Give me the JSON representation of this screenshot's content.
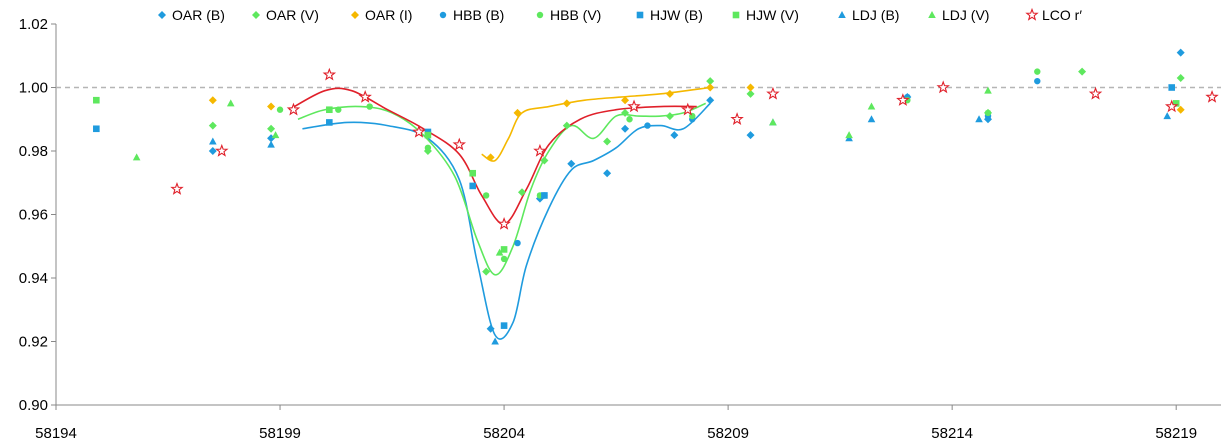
{
  "chart_data": {
    "type": "scatter",
    "title": "",
    "xlabel": "",
    "ylabel": "",
    "xlim": [
      58194,
      58220
    ],
    "ylim": [
      0.9,
      1.02
    ],
    "x_ticks": [
      58194,
      58199,
      58204,
      58209,
      58214,
      58219
    ],
    "y_ticks": [
      0.9,
      0.92,
      0.94,
      0.96,
      0.98,
      1.0,
      1.02
    ],
    "x_tick_labels": [
      "58194",
      "58199",
      "58204",
      "58209",
      "58214",
      "58219"
    ],
    "y_tick_labels": [
      "0.90",
      "0.92",
      "0.94",
      "0.96",
      "0.98",
      "1.00",
      "1.02"
    ],
    "reference_line": 1.0,
    "grid": false,
    "legend_position": "top",
    "series": [
      {
        "name": "OAR (B)",
        "color": "#1F9BDE",
        "marker": "diamond",
        "points": [
          [
            58197.5,
            0.98
          ],
          [
            58198.8,
            0.984
          ],
          [
            58203.7,
            0.924
          ],
          [
            58204.8,
            0.965
          ],
          [
            58205.5,
            0.976
          ],
          [
            58206.3,
            0.973
          ],
          [
            58206.7,
            0.987
          ],
          [
            58207.8,
            0.985
          ],
          [
            58208.6,
            0.996
          ],
          [
            58209.5,
            0.985
          ],
          [
            58213.0,
            0.997
          ],
          [
            58214.8,
            0.99
          ],
          [
            58219.1,
            1.011
          ]
        ]
      },
      {
        "name": "OAR (V)",
        "color": "#5EE85E",
        "marker": "diamond",
        "points": [
          [
            58197.5,
            0.988
          ],
          [
            58198.8,
            0.987
          ],
          [
            58202.3,
            0.98
          ],
          [
            58203.6,
            0.942
          ],
          [
            58204.4,
            0.967
          ],
          [
            58204.9,
            0.977
          ],
          [
            58205.4,
            0.988
          ],
          [
            58206.3,
            0.983
          ],
          [
            58206.7,
            0.992
          ],
          [
            58207.7,
            0.991
          ],
          [
            58208.6,
            1.002
          ],
          [
            58209.5,
            0.998
          ],
          [
            58214.8,
            0.992
          ],
          [
            58216.9,
            1.005
          ],
          [
            58219.1,
            1.003
          ]
        ]
      },
      {
        "name": "OAR (I)",
        "color": "#F5B800",
        "marker": "diamond",
        "points": [
          [
            58197.5,
            0.996
          ],
          [
            58198.8,
            0.994
          ],
          [
            58203.7,
            0.978
          ],
          [
            58204.3,
            0.992
          ],
          [
            58205.4,
            0.995
          ],
          [
            58206.7,
            0.996
          ],
          [
            58207.7,
            0.998
          ],
          [
            58208.6,
            1.0
          ],
          [
            58209.5,
            1.0
          ],
          [
            58219.1,
            0.993
          ]
        ]
      },
      {
        "name": "HBB (B)",
        "color": "#1F9BDE",
        "marker": "circle",
        "points": [
          [
            58204.3,
            0.951
          ],
          [
            58204.9,
            0.966
          ],
          [
            58207.2,
            0.988
          ],
          [
            58208.2,
            0.99
          ],
          [
            58213.0,
            0.997
          ],
          [
            58214.8,
            0.991
          ],
          [
            58215.9,
            1.002
          ]
        ]
      },
      {
        "name": "HBB (V)",
        "color": "#5EE85E",
        "marker": "circle",
        "points": [
          [
            58199.0,
            0.993
          ],
          [
            58200.3,
            0.993
          ],
          [
            58201.0,
            0.994
          ],
          [
            58202.3,
            0.981
          ],
          [
            58203.6,
            0.966
          ],
          [
            58204.0,
            0.946
          ],
          [
            58204.8,
            0.966
          ],
          [
            58206.8,
            0.99
          ],
          [
            58208.2,
            0.991
          ],
          [
            58213.0,
            0.996
          ],
          [
            58214.8,
            0.992
          ],
          [
            58215.9,
            1.005
          ]
        ]
      },
      {
        "name": "HJW (B)",
        "color": "#1F9BDE",
        "marker": "square",
        "points": [
          [
            58194.9,
            0.987
          ],
          [
            58200.1,
            0.989
          ],
          [
            58202.3,
            0.986
          ],
          [
            58203.3,
            0.969
          ],
          [
            58204.0,
            0.925
          ],
          [
            58204.9,
            0.966
          ],
          [
            58218.9,
            1.0
          ]
        ]
      },
      {
        "name": "HJW (V)",
        "color": "#5EE85E",
        "marker": "square",
        "points": [
          [
            58194.9,
            0.996
          ],
          [
            58200.1,
            0.993
          ],
          [
            58202.3,
            0.985
          ],
          [
            58203.3,
            0.973
          ],
          [
            58204.0,
            0.949
          ],
          [
            58219.0,
            0.995
          ]
        ]
      },
      {
        "name": "LDJ (B)",
        "color": "#1F9BDE",
        "marker": "triangle",
        "points": [
          [
            58197.5,
            0.983
          ],
          [
            58198.8,
            0.982
          ],
          [
            58203.8,
            0.92
          ],
          [
            58210.0,
            0.989
          ],
          [
            58211.7,
            0.984
          ],
          [
            58212.2,
            0.99
          ],
          [
            58214.6,
            0.99
          ],
          [
            58218.8,
            0.991
          ]
        ]
      },
      {
        "name": "LDJ (V)",
        "color": "#5EE85E",
        "marker": "triangle",
        "points": [
          [
            58195.8,
            0.978
          ],
          [
            58197.9,
            0.995
          ],
          [
            58198.9,
            0.985
          ],
          [
            58203.9,
            0.948
          ],
          [
            58210.0,
            0.989
          ],
          [
            58211.7,
            0.985
          ],
          [
            58212.2,
            0.994
          ],
          [
            58214.8,
            0.999
          ]
        ]
      },
      {
        "name": "LCO r′",
        "color": "#E0202A",
        "marker": "star",
        "points": [
          [
            58196.7,
            0.968
          ],
          [
            58197.7,
            0.98
          ],
          [
            58199.3,
            0.993
          ],
          [
            58200.1,
            1.004
          ],
          [
            58200.9,
            0.997
          ],
          [
            58202.1,
            0.986
          ],
          [
            58203.0,
            0.982
          ],
          [
            58204.0,
            0.957
          ],
          [
            58204.8,
            0.98
          ],
          [
            58206.9,
            0.994
          ],
          [
            58208.1,
            0.993
          ],
          [
            58209.2,
            0.99
          ],
          [
            58210.0,
            0.998
          ],
          [
            58212.9,
            0.996
          ],
          [
            58213.8,
            1.0
          ],
          [
            58217.2,
            0.998
          ],
          [
            58218.9,
            0.994
          ],
          [
            58219.8,
            0.997
          ]
        ]
      }
    ],
    "fit_lines": [
      {
        "color": "#1F9BDE",
        "points": [
          [
            58199.5,
            0.987
          ],
          [
            58200.5,
            0.989
          ],
          [
            58201.4,
            0.988
          ],
          [
            58202.3,
            0.984
          ],
          [
            58203.0,
            0.971
          ],
          [
            58203.4,
            0.945
          ],
          [
            58203.8,
            0.922
          ],
          [
            58204.2,
            0.926
          ],
          [
            58204.5,
            0.944
          ],
          [
            58205.0,
            0.962
          ],
          [
            58205.5,
            0.974
          ],
          [
            58206.0,
            0.977
          ],
          [
            58206.5,
            0.981
          ],
          [
            58207.0,
            0.987
          ],
          [
            58207.5,
            0.988
          ],
          [
            58208.0,
            0.987
          ],
          [
            58208.6,
            0.995
          ]
        ]
      },
      {
        "color": "#5EE85E",
        "points": [
          [
            58199.4,
            0.99
          ],
          [
            58200.0,
            0.993
          ],
          [
            58200.8,
            0.994
          ],
          [
            58201.5,
            0.992
          ],
          [
            58202.2,
            0.985
          ],
          [
            58202.9,
            0.972
          ],
          [
            58203.4,
            0.952
          ],
          [
            58203.8,
            0.941
          ],
          [
            58204.2,
            0.95
          ],
          [
            58204.6,
            0.968
          ],
          [
            58205.0,
            0.98
          ],
          [
            58205.5,
            0.988
          ],
          [
            58206.0,
            0.984
          ],
          [
            58206.5,
            0.991
          ],
          [
            58207.0,
            0.991
          ],
          [
            58207.5,
            0.991
          ],
          [
            58208.0,
            0.992
          ],
          [
            58208.5,
            0.995
          ]
        ]
      },
      {
        "color": "#F5B800",
        "points": [
          [
            58203.5,
            0.979
          ],
          [
            58203.8,
            0.977
          ],
          [
            58204.1,
            0.984
          ],
          [
            58204.4,
            0.992
          ],
          [
            58205.0,
            0.994
          ],
          [
            58205.8,
            0.996
          ],
          [
            58206.6,
            0.997
          ],
          [
            58207.5,
            0.998
          ],
          [
            58208.6,
            1.0
          ]
        ]
      },
      {
        "color": "#E0202A",
        "points": [
          [
            58199.2,
            0.993
          ],
          [
            58200.0,
            0.999
          ],
          [
            58200.6,
            0.999
          ],
          [
            58201.4,
            0.993
          ],
          [
            58202.2,
            0.987
          ],
          [
            58203.0,
            0.979
          ],
          [
            58203.5,
            0.966
          ],
          [
            58204.0,
            0.957
          ],
          [
            58204.5,
            0.968
          ],
          [
            58205.0,
            0.982
          ],
          [
            58205.7,
            0.99
          ],
          [
            58206.5,
            0.993
          ],
          [
            58207.5,
            0.994
          ],
          [
            58208.3,
            0.994
          ]
        ]
      }
    ]
  }
}
